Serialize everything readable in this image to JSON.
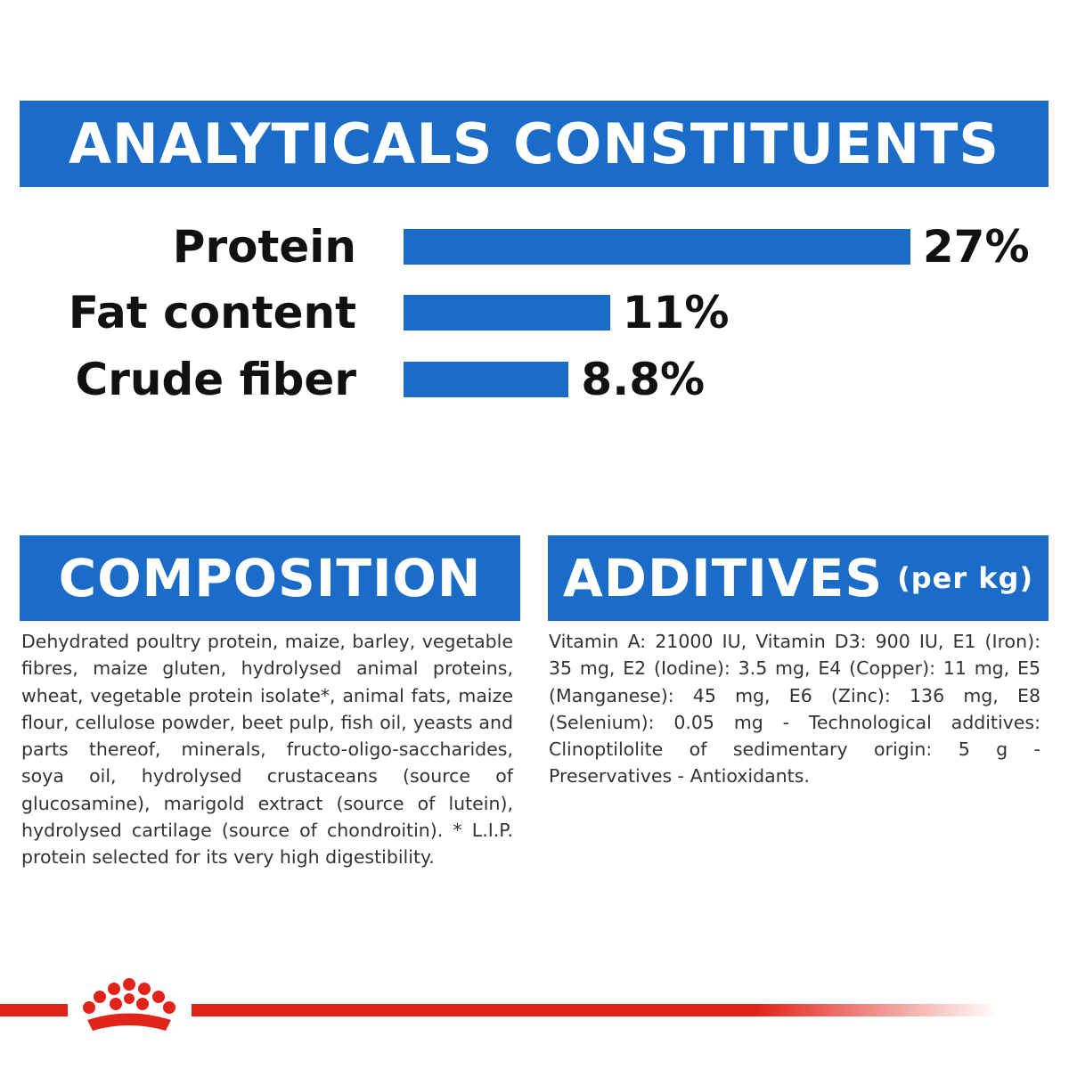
{
  "chart_data": {
    "type": "bar",
    "title": "ANALYTICALS CONSTITUENTS",
    "categories": [
      "Protein",
      "Fat content",
      "Crude fiber"
    ],
    "values": [
      27,
      11,
      8.8
    ],
    "value_labels": [
      "27%",
      "11%",
      "8.8%"
    ],
    "color": "#1a6cc8"
  },
  "composition": {
    "title": "COMPOSITION",
    "text": "Dehydrated poultry protein, maize, barley, vegetable fibres, maize gluten, hydrolysed animal proteins, wheat, vegetable protein isolate*, animal fats, maize flour, cellulose powder, beet pulp, fish oil, yeasts and parts thereof, minerals, fructo-oligo-saccharides, soya oil, hydrolysed crustaceans (source of glucosamine), marigold extract (source of lutein), hydrolysed cartilage (source of chondroitin). * L.I.P. protein selected for its very high digestibility."
  },
  "additives": {
    "title": "ADDITIVES",
    "unit": "(per kg)",
    "text": "Vitamin A: 21000 IU, Vitamin D3: 900 IU, E1 (Iron): 35 mg, E2 (Iodine): 3.5 mg, E4 (Copper): 11 mg, E5 (Manganese): 45 mg, E6 (Zinc): 136 mg, E8 (Selenium): 0.05 mg - Technological additives: Clinoptilolite of sedimentary origin: 5 g - Preservatives - Antioxidants."
  }
}
